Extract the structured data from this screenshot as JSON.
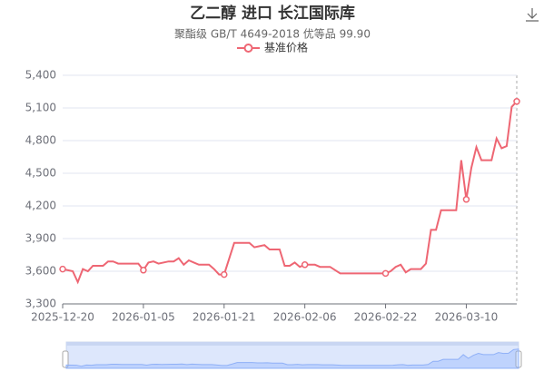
{
  "chart_data": {
    "type": "line",
    "title": "乙二醇 进口 长江国际库",
    "subtitle": "聚酯级 GB/T 4649-2018 优等品 99.90",
    "x": [
      "2025-12-20",
      "2025-12-22",
      "2025-12-23",
      "2025-12-24",
      "2025-12-25",
      "2025-12-26",
      "2025-12-28",
      "2025-12-29",
      "2025-12-30",
      "2025-12-31",
      "2026-01-04",
      "2026-01-05",
      "2026-01-06",
      "2026-01-07",
      "2026-01-08",
      "2026-01-10",
      "2026-01-11",
      "2026-01-12",
      "2026-01-13",
      "2026-01-14",
      "2026-01-15",
      "2026-01-16",
      "2026-01-18",
      "2026-01-19",
      "2026-01-20",
      "2026-01-21",
      "2026-01-23",
      "2026-01-26",
      "2026-01-27",
      "2026-01-28",
      "2026-01-29",
      "2026-01-30",
      "2026-02-01",
      "2026-02-02",
      "2026-02-03",
      "2026-02-04",
      "2026-02-05",
      "2026-02-06",
      "2026-02-08",
      "2026-02-09",
      "2026-02-11",
      "2026-02-13",
      "2026-02-22",
      "2026-02-23",
      "2026-02-24",
      "2026-02-25",
      "2026-02-26",
      "2026-02-27",
      "2026-03-01",
      "2026-03-02",
      "2026-03-03",
      "2026-03-04",
      "2026-03-05",
      "2026-03-08",
      "2026-03-09",
      "2026-03-10",
      "2026-03-11",
      "2026-03-12",
      "2026-03-13",
      "2026-03-15",
      "2026-03-16",
      "2026-03-17",
      "2026-03-18",
      "2026-03-19",
      "2026-03-20"
    ],
    "series": [
      {
        "name": "基准价格",
        "color": "#ee6673",
        "values": [
          3620,
          3600,
          3500,
          3620,
          3600,
          3650,
          3650,
          3690,
          3690,
          3670,
          3670,
          3610,
          3680,
          3690,
          3670,
          3690,
          3690,
          3720,
          3660,
          3700,
          3680,
          3660,
          3660,
          3620,
          3570,
          3570,
          3860,
          3860,
          3820,
          3830,
          3840,
          3800,
          3800,
          3650,
          3650,
          3680,
          3640,
          3660,
          3660,
          3640,
          3640,
          3580,
          3580,
          3600,
          3640,
          3660,
          3590,
          3620,
          3620,
          3670,
          3980,
          3980,
          4160,
          4160,
          4620,
          4260,
          4550,
          4740,
          4620,
          4620,
          4820,
          4730,
          4750,
          5110,
          5160
        ]
      }
    ],
    "xlim": [
      "2025-12-20",
      "2026-03-20"
    ],
    "xticks": [
      "2025-12-20",
      "2026-01-05",
      "2026-01-21",
      "2026-02-06",
      "2026-02-22",
      "2026-03-10"
    ],
    "ylim": [
      3300,
      5400
    ],
    "yticks": [
      {
        "value": 3300,
        "label": "3,300"
      },
      {
        "value": 3600,
        "label": "3,600"
      },
      {
        "value": 3900,
        "label": "3,900"
      },
      {
        "value": 4200,
        "label": "4,200"
      },
      {
        "value": 4500,
        "label": "4,500"
      },
      {
        "value": 4800,
        "label": "4,800"
      },
      {
        "value": 5100,
        "label": "5,100"
      },
      {
        "value": 5400,
        "label": "5,400"
      }
    ],
    "grid": true
  }
}
